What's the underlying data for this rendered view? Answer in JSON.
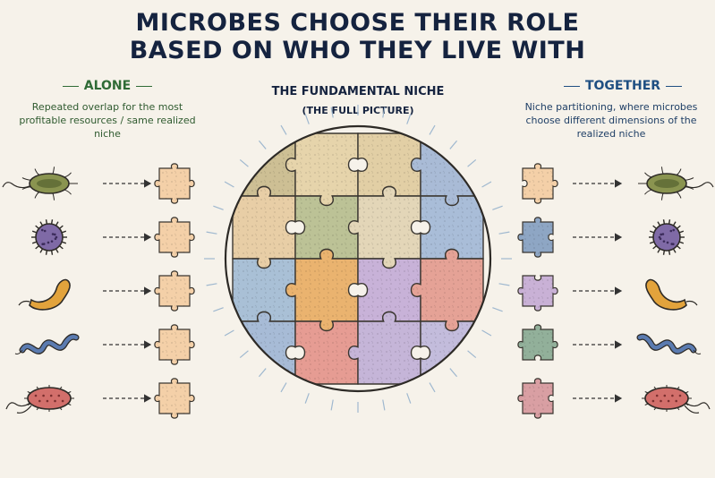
{
  "title": {
    "line1": "MICROBES CHOOSE THEIR ROLE",
    "line2": "BASED ON WHO THEY LIVE WITH"
  },
  "alone": {
    "heading": "ALONE",
    "description": [
      "Repeated overlap for the most",
      "profitable resources / same realized",
      "niche"
    ],
    "heading_color": "#2f6b36",
    "text_color": "#2f5a2f"
  },
  "together": {
    "heading": "TOGETHER",
    "description": [
      "Niche partitioning, where microbes",
      "choose different dimensions of the",
      "realized niche"
    ],
    "heading_color": "#1f4f82",
    "text_color": "#1f3f66"
  },
  "center": {
    "heading": "THE FUNDAMENTAL NICHE",
    "subheading": "(THE FULL PICTURE)"
  },
  "microbes": [
    {
      "name": "rod-bacterium",
      "color": "#8a9450"
    },
    {
      "name": "spiky-coccus",
      "color": "#7f6aa6"
    },
    {
      "name": "curved-bacillus",
      "color": "#e2a33c"
    },
    {
      "name": "spirillum",
      "color": "#5b7bb0"
    },
    {
      "name": "flagellated-rod",
      "color": "#d26f6b"
    }
  ],
  "colors": {
    "alone_piece": "#f4d0a8",
    "together_pieces": [
      "#f4d0a8",
      "#8ea6c4",
      "#c9b1d6",
      "#92b09a",
      "#d99fa3"
    ],
    "niche_pieces": [
      "#cdbf94",
      "#e6d4ab",
      "#e2cfa5",
      "#a9bbd6",
      "#e8cea6",
      "#bcc296",
      "#e3d6b8",
      "#a9bdd8",
      "#a9c0d6",
      "#eab36f",
      "#c8b2d8",
      "#e5a296",
      "#a7bbd6",
      "#e69c93",
      "#c5b5d8",
      "#c3bcdc"
    ],
    "arrow": "#333333",
    "outline": "#2d2a26"
  }
}
